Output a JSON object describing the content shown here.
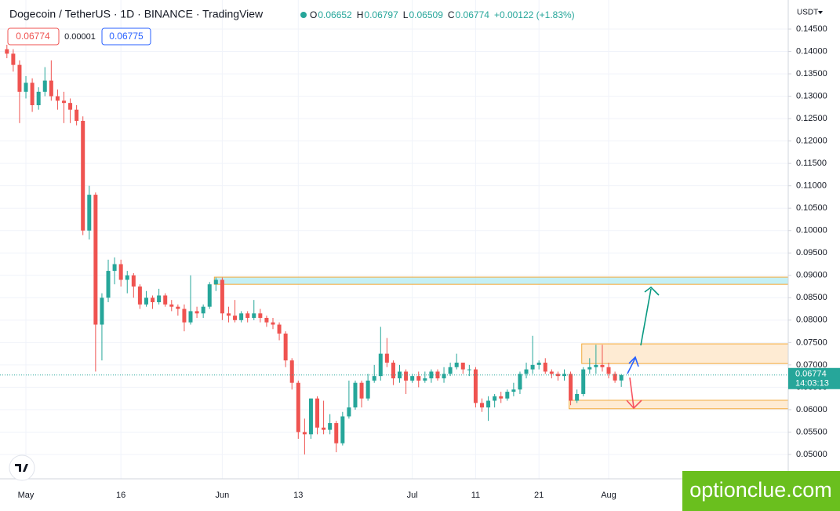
{
  "chart_data": {
    "type": "candlestick",
    "title": "Dogecoin / TetherUS · 1D · BINANCE · TradingView",
    "legend": {
      "items": [
        {
          "key": "O",
          "value": "0.06652"
        },
        {
          "key": "H",
          "value": "0.06797"
        },
        {
          "key": "L",
          "value": "0.06509"
        },
        {
          "key": "C",
          "value": "0.06774"
        }
      ],
      "change": "+0.00122 (+1.83%)"
    },
    "price_boxes": [
      "0.06774",
      "0.00001",
      "0.06775"
    ],
    "currency": "USDT",
    "categories": [
      null,
      null,
      null,
      "May",
      null,
      null,
      null,
      null,
      null,
      null,
      null,
      null,
      null,
      null,
      null,
      null,
      null,
      null,
      "16",
      null,
      null,
      null,
      null,
      null,
      null,
      null,
      null,
      null,
      null,
      null,
      null,
      null,
      null,
      null,
      "Jun",
      null,
      null,
      null,
      null,
      null,
      null,
      null,
      null,
      null,
      null,
      null,
      "13",
      null,
      null,
      null,
      null,
      null,
      null,
      null,
      null,
      null,
      null,
      null,
      null,
      null,
      null,
      null,
      null,
      null,
      "Jul",
      null,
      null,
      null,
      null,
      null,
      null,
      null,
      null,
      null,
      "11",
      null,
      null,
      null,
      null,
      null,
      null,
      null,
      null,
      null,
      "21",
      null,
      null,
      null,
      null,
      null,
      null,
      null,
      null,
      null,
      null,
      "Aug",
      null,
      null
    ],
    "open": [
      0.1405,
      0.1395,
      0.137,
      0.131,
      0.133,
      0.128,
      0.131,
      0.1335,
      0.13,
      0.129,
      0.1285,
      0.127,
      0.1245,
      0.1,
      0.108,
      0.079,
      0.085,
      0.091,
      0.0925,
      0.089,
      0.09,
      0.0875,
      0.0835,
      0.085,
      0.084,
      0.0855,
      0.0835,
      0.083,
      0.0825,
      0.0795,
      0.082,
      0.0815,
      0.083,
      0.088,
      0.089,
      0.0815,
      0.081,
      0.08,
      0.0815,
      0.0805,
      0.0815,
      0.0805,
      0.0795,
      0.079,
      0.077,
      0.071,
      0.066,
      0.055,
      0.0545,
      0.0625,
      0.056,
      0.0555,
      0.057,
      0.0525,
      0.0585,
      0.0605,
      0.066,
      0.0625,
      0.0665,
      0.0675,
      0.0725,
      0.0705,
      0.067,
      0.0685,
      0.0665,
      0.0675,
      0.0665,
      0.067,
      0.0685,
      0.067,
      0.068,
      0.0695,
      0.0705,
      0.069,
      0.069,
      0.0615,
      0.0605,
      0.062,
      0.063,
      0.0625,
      0.064,
      0.0645,
      0.068,
      0.069,
      0.07,
      0.0705,
      0.0685,
      0.068,
      0.0675,
      0.068,
      0.062,
      0.0635,
      0.069,
      0.0695,
      0.07,
      0.0695,
      0.068,
      0.06652
    ],
    "high": [
      0.1415,
      0.1405,
      0.138,
      0.1345,
      0.134,
      0.132,
      0.1365,
      0.138,
      0.1315,
      0.131,
      0.1295,
      0.128,
      0.1255,
      0.11,
      0.1085,
      0.086,
      0.0935,
      0.094,
      0.0935,
      0.091,
      0.0905,
      0.088,
      0.0865,
      0.0855,
      0.087,
      0.086,
      0.0845,
      0.0835,
      0.0835,
      0.09,
      0.083,
      0.0835,
      0.0885,
      0.0895,
      0.0895,
      0.083,
      0.0845,
      0.082,
      0.082,
      0.0845,
      0.0825,
      0.081,
      0.0805,
      0.0795,
      0.0775,
      0.0715,
      0.0665,
      0.058,
      0.0625,
      0.063,
      0.062,
      0.059,
      0.0575,
      0.0595,
      0.0665,
      0.0665,
      0.0665,
      0.068,
      0.07,
      0.0785,
      0.076,
      0.071,
      0.07,
      0.069,
      0.068,
      0.0685,
      0.0685,
      0.069,
      0.069,
      0.0695,
      0.0705,
      0.0725,
      0.0705,
      0.07,
      0.0695,
      0.0625,
      0.063,
      0.0635,
      0.064,
      0.0645,
      0.066,
      0.0685,
      0.0705,
      0.0765,
      0.071,
      0.0715,
      0.069,
      0.0685,
      0.069,
      0.0685,
      0.0645,
      0.0695,
      0.0715,
      0.0745,
      0.0745,
      0.0705,
      0.0685,
      0.06797
    ],
    "low": [
      0.1385,
      0.1355,
      0.124,
      0.1295,
      0.1265,
      0.127,
      0.13,
      0.129,
      0.127,
      0.124,
      0.124,
      0.1235,
      0.099,
      0.098,
      0.0685,
      0.071,
      0.084,
      0.088,
      0.0875,
      0.086,
      0.085,
      0.0825,
      0.083,
      0.0825,
      0.0835,
      0.083,
      0.082,
      0.081,
      0.0775,
      0.079,
      0.0805,
      0.0805,
      0.0825,
      0.0865,
      0.08,
      0.0795,
      0.0795,
      0.0795,
      0.0795,
      0.08,
      0.0795,
      0.0785,
      0.078,
      0.0755,
      0.0695,
      0.0645,
      0.0535,
      0.05,
      0.0535,
      0.0545,
      0.0545,
      0.0545,
      0.0505,
      0.052,
      0.058,
      0.06,
      0.0605,
      0.062,
      0.066,
      0.0665,
      0.0695,
      0.0655,
      0.066,
      0.0635,
      0.066,
      0.065,
      0.066,
      0.066,
      0.0665,
      0.066,
      0.0675,
      0.069,
      0.068,
      0.0675,
      0.0605,
      0.0595,
      0.0575,
      0.0605,
      0.0615,
      0.062,
      0.063,
      0.0635,
      0.067,
      0.068,
      0.069,
      0.068,
      0.067,
      0.0665,
      0.0665,
      0.061,
      0.0615,
      0.063,
      0.068,
      0.068,
      0.0685,
      0.067,
      0.066,
      0.06509
    ],
    "close": [
      0.1395,
      0.137,
      0.131,
      0.133,
      0.128,
      0.131,
      0.1335,
      0.13,
      0.129,
      0.1285,
      0.127,
      0.1245,
      0.1,
      0.108,
      0.079,
      0.085,
      0.091,
      0.0925,
      0.089,
      0.09,
      0.0875,
      0.0835,
      0.085,
      0.084,
      0.0855,
      0.0835,
      0.083,
      0.0825,
      0.0795,
      0.082,
      0.0815,
      0.083,
      0.088,
      0.089,
      0.0815,
      0.081,
      0.08,
      0.0815,
      0.0805,
      0.0815,
      0.0805,
      0.0795,
      0.079,
      0.077,
      0.071,
      0.066,
      0.055,
      0.0545,
      0.0625,
      0.056,
      0.0555,
      0.057,
      0.0525,
      0.0585,
      0.0605,
      0.066,
      0.0625,
      0.0665,
      0.0675,
      0.0725,
      0.0705,
      0.067,
      0.0685,
      0.0665,
      0.0675,
      0.0665,
      0.067,
      0.0685,
      0.067,
      0.068,
      0.0695,
      0.0705,
      0.069,
      0.069,
      0.0615,
      0.0605,
      0.062,
      0.063,
      0.0625,
      0.064,
      0.0645,
      0.068,
      0.069,
      0.07,
      0.0705,
      0.0685,
      0.068,
      0.0675,
      0.068,
      0.062,
      0.0635,
      0.069,
      0.0695,
      0.07,
      0.0695,
      0.068,
      0.06652,
      0.06774
    ],
    "up_color": "#26a69a",
    "down_color": "#ef5350",
    "ylim": [
      0.04456,
      0.15149
    ],
    "yticks": [
      {
        "value": 0.05,
        "label": "0.05000"
      },
      {
        "value": 0.055,
        "label": "0.05500"
      },
      {
        "value": 0.06,
        "label": "0.06000"
      },
      {
        "value": 0.065,
        "label": "0.06500"
      },
      {
        "value": 0.07,
        "label": "0.07000"
      },
      {
        "value": 0.075,
        "label": "0.07500"
      },
      {
        "value": 0.08,
        "label": "0.08000"
      },
      {
        "value": 0.085,
        "label": "0.08500"
      },
      {
        "value": 0.09,
        "label": "0.09000"
      },
      {
        "value": 0.095,
        "label": "0.09500"
      },
      {
        "value": 0.1,
        "label": "0.10000"
      },
      {
        "value": 0.105,
        "label": "0.10500"
      },
      {
        "value": 0.11,
        "label": "0.11000"
      },
      {
        "value": 0.115,
        "label": "0.11500"
      },
      {
        "value": 0.12,
        "label": "0.12000"
      },
      {
        "value": 0.125,
        "label": "0.12500"
      },
      {
        "value": 0.13,
        "label": "0.13000"
      },
      {
        "value": 0.135,
        "label": "0.13500"
      },
      {
        "value": 0.14,
        "label": "0.14000"
      },
      {
        "value": 0.145,
        "label": "0.14500"
      }
    ],
    "grid": true,
    "zones": [
      {
        "low": 0.088,
        "high": 0.0896,
        "start": 33,
        "color": "#b2ebf2"
      },
      {
        "low": 0.0703,
        "high": 0.0747,
        "start": 91,
        "color": "#fde4c4"
      },
      {
        "low": 0.0602,
        "high": 0.0621,
        "start": 89,
        "color": "#fde4c4"
      }
    ],
    "zone_border": "#f2a93b",
    "last_price": {
      "value": 0.06774,
      "label": "0.06774",
      "countdown": "14:03:13"
    },
    "watermark": "optionclue.com"
  }
}
